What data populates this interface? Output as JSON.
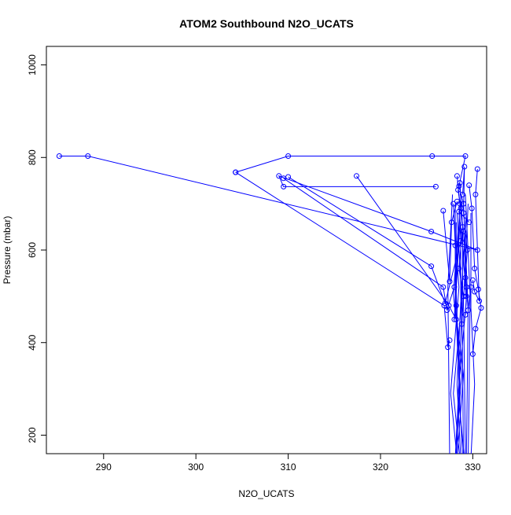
{
  "chart_data": {
    "type": "line",
    "title": "ATOM2 Southbound N2O_UCATS",
    "xlabel": "N2O_UCATS",
    "ylabel": "Pressure (mbar)",
    "xlim": [
      283.8,
      331.5
    ],
    "ylim": [
      1040,
      160
    ],
    "y_reversed": true,
    "x_ticks": [
      290,
      300,
      310,
      320,
      330
    ],
    "y_ticks": [
      200,
      400,
      600,
      800,
      1000
    ],
    "series_color": "#0000ff",
    "marker": "open-circle",
    "grid": false,
    "legend": "none",
    "series": [
      {
        "x": [
          285.2,
          288.3,
          330.5,
          325.5,
          309.0,
          309.5,
          326.0
        ],
        "y": [
          803,
          803,
          600,
          640,
          760,
          737,
          737
        ]
      },
      {
        "x": [
          304.3,
          310.0,
          325.6,
          329.2,
          328.5,
          329.0
        ],
        "y": [
          768,
          803,
          803,
          803,
          738,
          700
        ]
      },
      {
        "x": [
          304.3,
          326.9,
          327.3,
          327.5
        ],
        "y": [
          768,
          480,
          390,
          405
        ]
      },
      {
        "x": [
          317.4,
          327.4,
          328.2
        ],
        "y": [
          760,
          480,
          450
        ]
      },
      {
        "x": [
          309.5,
          326.8,
          327.2,
          328.0
        ],
        "y": [
          755,
          520,
          470,
          520
        ]
      },
      {
        "x": [
          310.0,
          325.5,
          327.0,
          328.7,
          328.5,
          329.6
        ],
        "y": [
          758,
          565,
          485,
          620,
          683,
          660
        ]
      },
      {
        "x": [
          326.8,
          327.5,
          327.7,
          328.3
        ],
        "y": [
          685,
          532,
          660,
          705
        ]
      },
      {
        "x": [
          327.9,
          328.1,
          328.2,
          328.0,
          328.6,
          328.3
        ],
        "y": [
          700,
          610,
          480,
          450,
          700,
          760
        ]
      },
      {
        "x": [
          328.9,
          329.1,
          329.0,
          329.4,
          329.2,
          329.3,
          329.2
        ],
        "y": [
          720,
          780,
          680,
          600,
          540,
          500,
          460
        ]
      },
      {
        "x": [
          329.6,
          329.9,
          330.2,
          330.6,
          330.9,
          330.3,
          330.0
        ],
        "y": [
          740,
          690,
          560,
          515,
          475,
          430,
          375
        ]
      },
      {
        "x": [
          328.6,
          328.9,
          328.5,
          329.0,
          328.8
        ],
        "y": [
          745,
          650,
          560,
          500,
          440
        ]
      },
      {
        "x": [
          330.5,
          330.3,
          330.7,
          330.2,
          330.0
        ],
        "y": [
          775,
          720,
          490,
          510,
          535
        ]
      },
      {
        "x": [
          328.4,
          328.7,
          329.0,
          329.3,
          329.5,
          329.8
        ],
        "y": [
          730,
          690,
          640,
          520,
          470,
          520
        ]
      }
    ]
  }
}
